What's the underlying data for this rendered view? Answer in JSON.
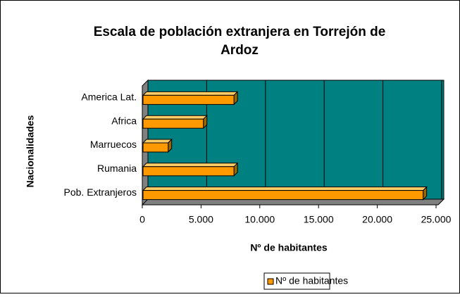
{
  "chart_data": {
    "type": "bar",
    "orientation": "horizontal",
    "title": "Escala de población extranjera en Torrejón de",
    "title_line2": "Ardoz",
    "x_label": "Nº de habitantes",
    "y_label": "Nacionalidades",
    "categories": [
      "America Lat.",
      "Africa",
      "Marruecos",
      "Rumania",
      "Pob. Extranjeros"
    ],
    "series": [
      {
        "name": "Nº de habitantes",
        "color": "#FF9900",
        "values": [
          7800,
          5200,
          2200,
          7800,
          23900
        ]
      }
    ],
    "xlim": [
      0,
      25000
    ],
    "xticks": [
      0,
      {
        "value": 5000,
        "label": "5.000"
      },
      {
        "value": 10000,
        "label": "10.000"
      },
      {
        "value": 15000,
        "label": "15.000"
      },
      {
        "value": 20000,
        "label": "20.000"
      },
      {
        "value": 25000,
        "label": "25.000"
      }
    ],
    "grid": true,
    "legend": "bottom"
  }
}
